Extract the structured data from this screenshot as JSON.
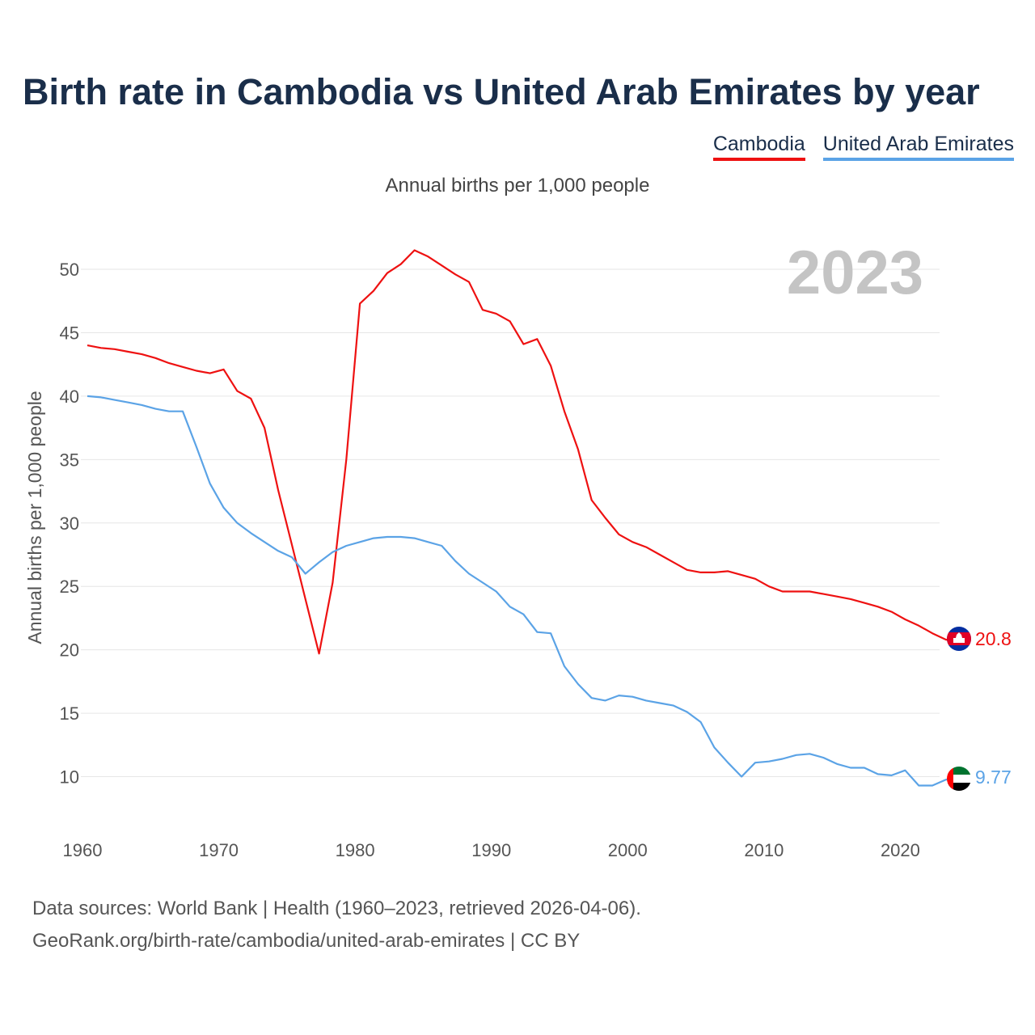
{
  "title": "Birth rate in Cambodia vs United Arab Emirates by year",
  "subtitle": "Annual births per 1,000 people",
  "year_watermark": "2023",
  "legend": [
    {
      "label": "Cambodia",
      "color": "#ee1111"
    },
    {
      "label": "United Arab Emirates",
      "color": "#5ba3e6"
    }
  ],
  "footer": {
    "line1": "Data sources: World Bank | Health (1960–2023, retrieved 2026-04-06).",
    "line2": "GeoRank.org/birth-rate/cambodia/united-arab-emirates | CC BY"
  },
  "chart_data": {
    "type": "line",
    "title": "Birth rate in Cambodia vs United Arab Emirates by year",
    "xlabel": "",
    "ylabel": "Annual births per 1,000 people",
    "xlim": [
      1960,
      2023
    ],
    "ylim": [
      7,
      53
    ],
    "xticks": [
      1960,
      1970,
      1980,
      1990,
      2000,
      2010,
      2020
    ],
    "yticks": [
      10,
      15,
      20,
      25,
      30,
      35,
      40,
      45,
      50
    ],
    "grid": true,
    "legend_position": "top-right",
    "x": [
      1960,
      1961,
      1962,
      1963,
      1964,
      1965,
      1966,
      1967,
      1968,
      1969,
      1970,
      1971,
      1972,
      1973,
      1974,
      1975,
      1976,
      1977,
      1978,
      1979,
      1980,
      1981,
      1982,
      1983,
      1984,
      1985,
      1986,
      1987,
      1988,
      1989,
      1990,
      1991,
      1992,
      1993,
      1994,
      1995,
      1996,
      1997,
      1998,
      1999,
      2000,
      2001,
      2002,
      2003,
      2004,
      2005,
      2006,
      2007,
      2008,
      2009,
      2010,
      2011,
      2012,
      2013,
      2014,
      2015,
      2016,
      2017,
      2018,
      2019,
      2020,
      2021,
      2022,
      2023
    ],
    "series": [
      {
        "name": "Cambodia",
        "color": "#ee1111",
        "end_label": "20.8",
        "values": [
          44.0,
          43.8,
          43.7,
          43.5,
          43.3,
          43.0,
          42.6,
          42.3,
          42.0,
          41.8,
          42.1,
          40.4,
          39.8,
          37.5,
          32.6,
          28.3,
          24.0,
          19.7,
          25.3,
          35.0,
          47.3,
          48.3,
          49.7,
          50.4,
          51.5,
          51.0,
          50.3,
          49.6,
          49.0,
          46.8,
          46.5,
          45.9,
          44.1,
          44.5,
          42.4,
          38.8,
          35.8,
          31.8,
          30.4,
          29.1,
          28.5,
          28.1,
          27.5,
          26.9,
          26.3,
          26.1,
          26.1,
          26.2,
          25.9,
          25.6,
          25.0,
          24.6,
          24.6,
          24.6,
          24.4,
          24.2,
          24.0,
          23.7,
          23.4,
          23.0,
          22.4,
          21.9,
          21.3,
          20.8
        ]
      },
      {
        "name": "United Arab Emirates",
        "color": "#5ba3e6",
        "end_label": "9.77",
        "values": [
          40.0,
          39.9,
          39.7,
          39.5,
          39.3,
          39.0,
          38.8,
          38.8,
          36.0,
          33.1,
          31.2,
          30.0,
          29.2,
          28.5,
          27.8,
          27.3,
          26.0,
          26.9,
          27.7,
          28.2,
          28.5,
          28.8,
          28.9,
          28.9,
          28.8,
          28.5,
          28.2,
          27.0,
          26.0,
          25.3,
          24.6,
          23.4,
          22.8,
          21.4,
          21.3,
          18.7,
          17.3,
          16.2,
          16.0,
          16.4,
          16.3,
          16.0,
          15.8,
          15.6,
          15.1,
          14.3,
          12.3,
          11.1,
          10.0,
          11.1,
          11.2,
          11.4,
          11.7,
          11.8,
          11.5,
          11.0,
          10.7,
          10.7,
          10.2,
          10.1,
          10.5,
          9.3,
          9.3,
          9.77
        ]
      }
    ]
  }
}
